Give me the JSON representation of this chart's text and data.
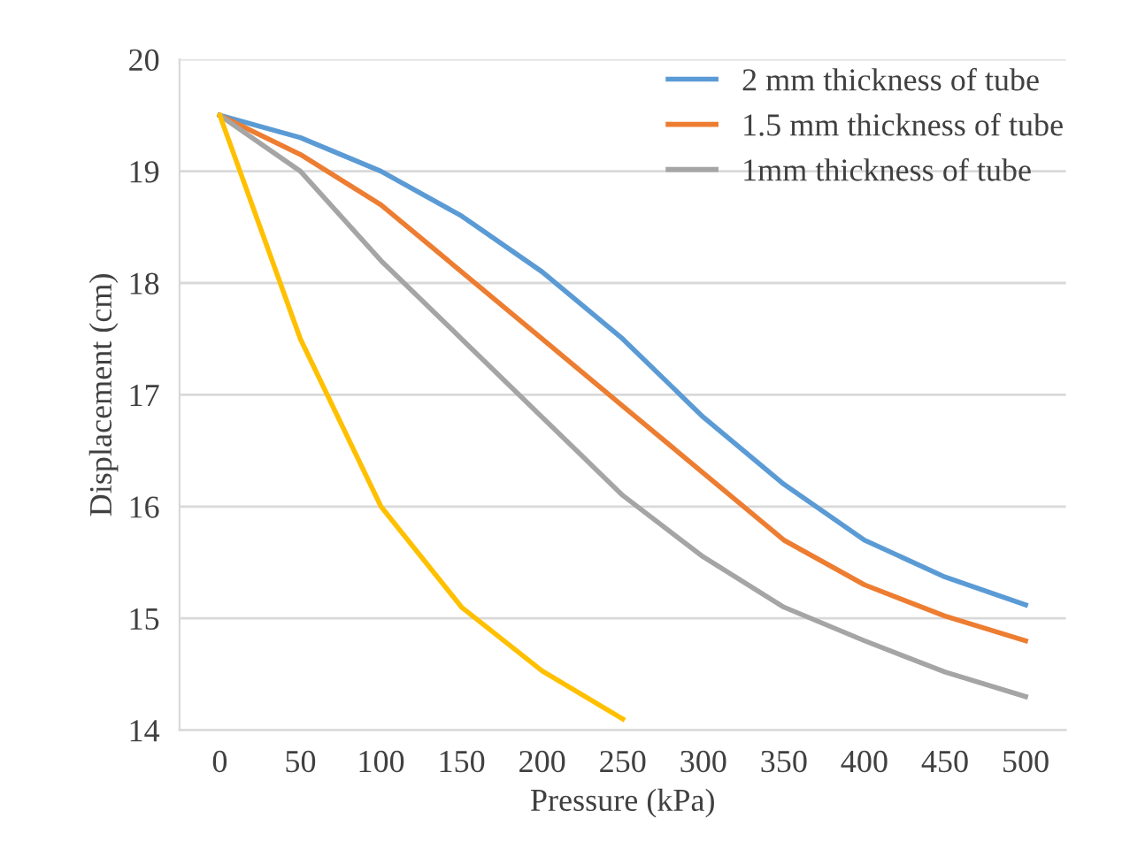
{
  "chart_data": {
    "type": "line",
    "xlabel": "Pressure (kPa)",
    "ylabel": "Displacement (cm)",
    "categories": [
      "0",
      "50",
      "100",
      "150",
      "200",
      "250",
      "300",
      "350",
      "400",
      "450",
      "500"
    ],
    "series": [
      {
        "name": "2 mm thickness of tube",
        "color": "#5b9bd5",
        "values": [
          19.5,
          19.3,
          19.0,
          18.6,
          18.1,
          17.5,
          16.8,
          16.2,
          15.7,
          15.37,
          15.12
        ]
      },
      {
        "name": "1.5 mm thickness of tube",
        "color": "#ed7d31",
        "values": [
          19.5,
          19.15,
          18.7,
          18.1,
          17.5,
          16.9,
          16.3,
          15.7,
          15.3,
          15.02,
          14.8
        ]
      },
      {
        "name": "1mm thickness of tube",
        "color": "#a5a5a5",
        "values": [
          19.5,
          19.0,
          18.2,
          17.5,
          16.8,
          16.1,
          15.55,
          15.1,
          14.8,
          14.52,
          14.3
        ]
      },
      {
        "color": "#ffc000",
        "values": [
          19.5,
          17.5,
          16.0,
          15.1,
          14.53,
          14.1,
          null,
          null,
          null,
          null,
          null
        ]
      }
    ],
    "ylim": [
      14,
      20
    ],
    "yticks": [
      14,
      15,
      16,
      17,
      18,
      19,
      20
    ],
    "grid": "y",
    "legend": "top right",
    "marker": "none",
    "line_style": "solid"
  }
}
